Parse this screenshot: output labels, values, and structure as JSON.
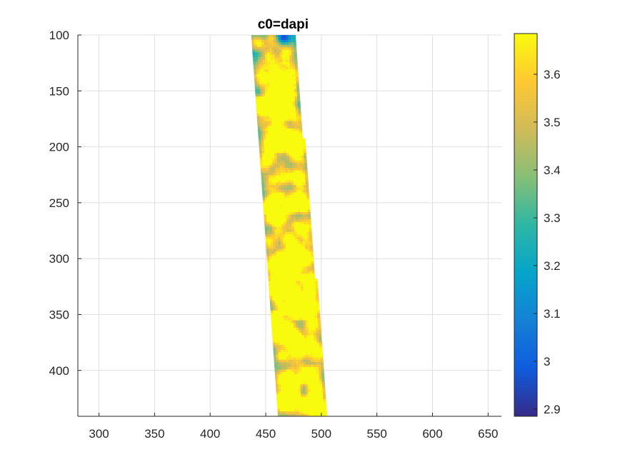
{
  "chart_data": [
    {
      "type": "heatmap",
      "title": "c0=dapi",
      "xlabel": "",
      "ylabel": "",
      "xlim": [
        281,
        662
      ],
      "ylim": [
        100,
        441
      ],
      "y_reversed": true,
      "x_ticks": [
        "300",
        "350",
        "400",
        "450",
        "500",
        "550",
        "600",
        "650"
      ],
      "y_ticks": [
        "100",
        "150",
        "200",
        "250",
        "300",
        "350",
        "400"
      ],
      "grid": true,
      "data_region": {
        "description_polygon_data_units": [
          [
            437,
            100
          ],
          [
            475,
            100
          ],
          [
            505,
            441
          ],
          [
            461,
            441
          ]
        ],
        "orientation": "tilted strip"
      },
      "notable_values": [
        {
          "x": 465,
          "y": 101,
          "value": 2.95
        },
        {
          "x": 465,
          "y": 337,
          "value": 3.65
        }
      ]
    },
    {
      "type": "colorbar",
      "colormap": "parula",
      "clim": [
        2.885,
        3.685
      ],
      "ticks": [
        "2.9",
        "3",
        "3.1",
        "3.2",
        "3.3",
        "3.4",
        "3.5",
        "3.6"
      ],
      "colors": [
        "#352a87",
        "#0f5cdd",
        "#1481d6",
        "#06a4ca",
        "#2eb7a4",
        "#87bf77",
        "#d1bb59",
        "#fec832",
        "#f9fb0e"
      ]
    }
  ]
}
